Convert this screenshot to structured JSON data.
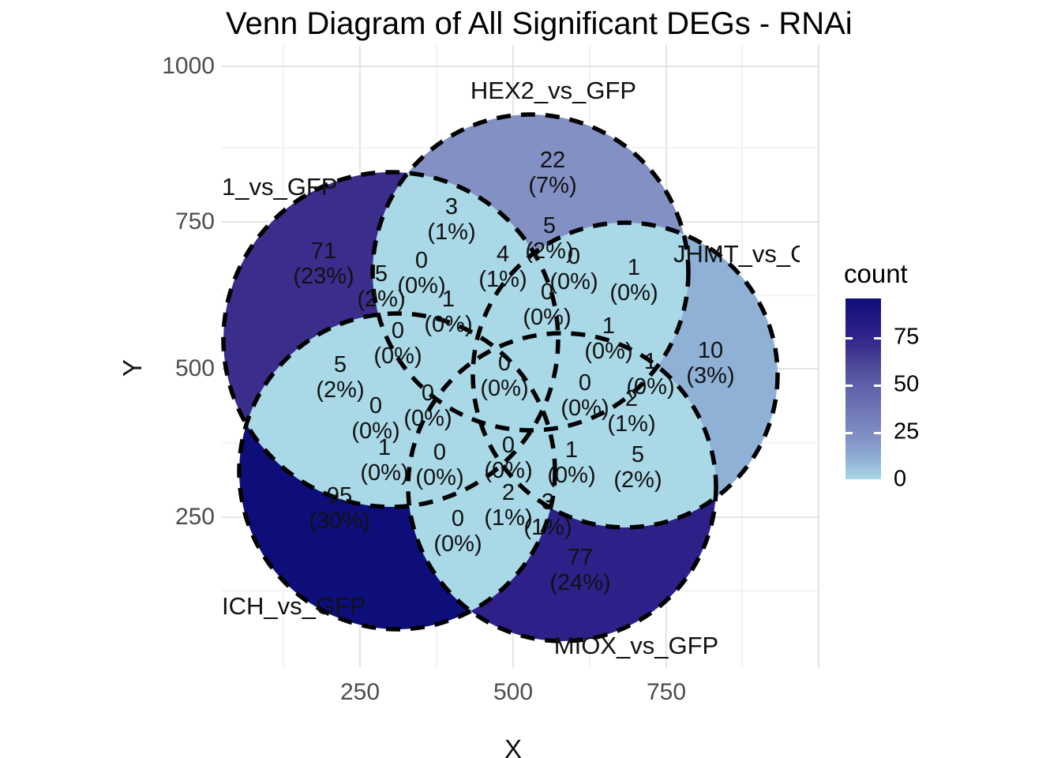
{
  "title": "Venn Diagram of All Significant DEGs - RNAi",
  "chart_data": {
    "type": "venn",
    "title": "Venn Diagram of All Significant DEGs - RNAi",
    "xlabel": "X",
    "ylabel": "Y",
    "x_tick_labels": [
      "250",
      "500",
      "750"
    ],
    "y_tick_labels": [
      "1000",
      "750",
      "500",
      "250"
    ],
    "x_range": [
      0,
      1000
    ],
    "y_range": [
      0,
      1000
    ],
    "grid": true,
    "legend": {
      "title": "count",
      "position": "right",
      "tick_labels": [
        "75",
        "50",
        "25",
        "0"
      ],
      "gradient_high": "#0E0E7A",
      "gradient_low": "#A9D8E6"
    },
    "overlap_fill": "#A9D8E6",
    "outline_style": "dashed-black",
    "sets": [
      {
        "label": "1_vs_GFP",
        "unique_count": 71,
        "unique_pct": "23%",
        "fill": "#3A2D8C"
      },
      {
        "label": "HEX2_vs_GFP",
        "unique_count": 22,
        "unique_pct": "7%",
        "fill": "#8290C4"
      },
      {
        "label": "JHMT_vs_G",
        "unique_count": 10,
        "unique_pct": "3%",
        "fill": "#8FB1D6"
      },
      {
        "label": "MIOX_vs_GFP",
        "unique_count": 77,
        "unique_pct": "24%",
        "fill": "#2E2089"
      },
      {
        "label": "ICH_vs_GFP",
        "unique_count": 95,
        "unique_pct": "30%",
        "fill": "#0E0E7A"
      }
    ],
    "regions": [
      {
        "count": "71",
        "pct": "(23%)"
      },
      {
        "count": "22",
        "pct": "(7%)"
      },
      {
        "count": "10",
        "pct": "(3%)"
      },
      {
        "count": "77",
        "pct": "(24%)"
      },
      {
        "count": "95",
        "pct": "(30%)"
      },
      {
        "count": "3",
        "pct": "(1%)"
      },
      {
        "count": "5",
        "pct": "(2%)"
      },
      {
        "count": "4",
        "pct": "(1%)"
      },
      {
        "count": "0",
        "pct": "(0%)"
      },
      {
        "count": "1",
        "pct": "(0%)"
      },
      {
        "count": "5",
        "pct": "(2%)"
      },
      {
        "count": "0",
        "pct": "(0%)"
      },
      {
        "count": "1",
        "pct": "(0%)"
      },
      {
        "count": "0",
        "pct": "(0%)"
      },
      {
        "count": "0",
        "pct": "(0%)"
      },
      {
        "count": "0",
        "pct": "(0%)"
      },
      {
        "count": "1",
        "pct": "(0%)"
      },
      {
        "count": "1",
        "pct": "(0%)"
      },
      {
        "count": "0",
        "pct": "(0%)"
      },
      {
        "count": "5",
        "pct": "(2%)"
      },
      {
        "count": "0",
        "pct": "(0%)"
      },
      {
        "count": "1",
        "pct": "(0%)"
      },
      {
        "count": "0",
        "pct": "(0%)"
      },
      {
        "count": "0",
        "pct": "(0%)"
      },
      {
        "count": "1",
        "pct": "(0%)"
      },
      {
        "count": "0",
        "pct": "(0%)"
      },
      {
        "count": "2",
        "pct": "(1%)"
      },
      {
        "count": "5",
        "pct": "(2%)"
      },
      {
        "count": "0",
        "pct": "(0%)"
      },
      {
        "count": "2",
        "pct": "(1%)"
      },
      {
        "count": "3",
        "pct": "(1%)"
      }
    ]
  }
}
